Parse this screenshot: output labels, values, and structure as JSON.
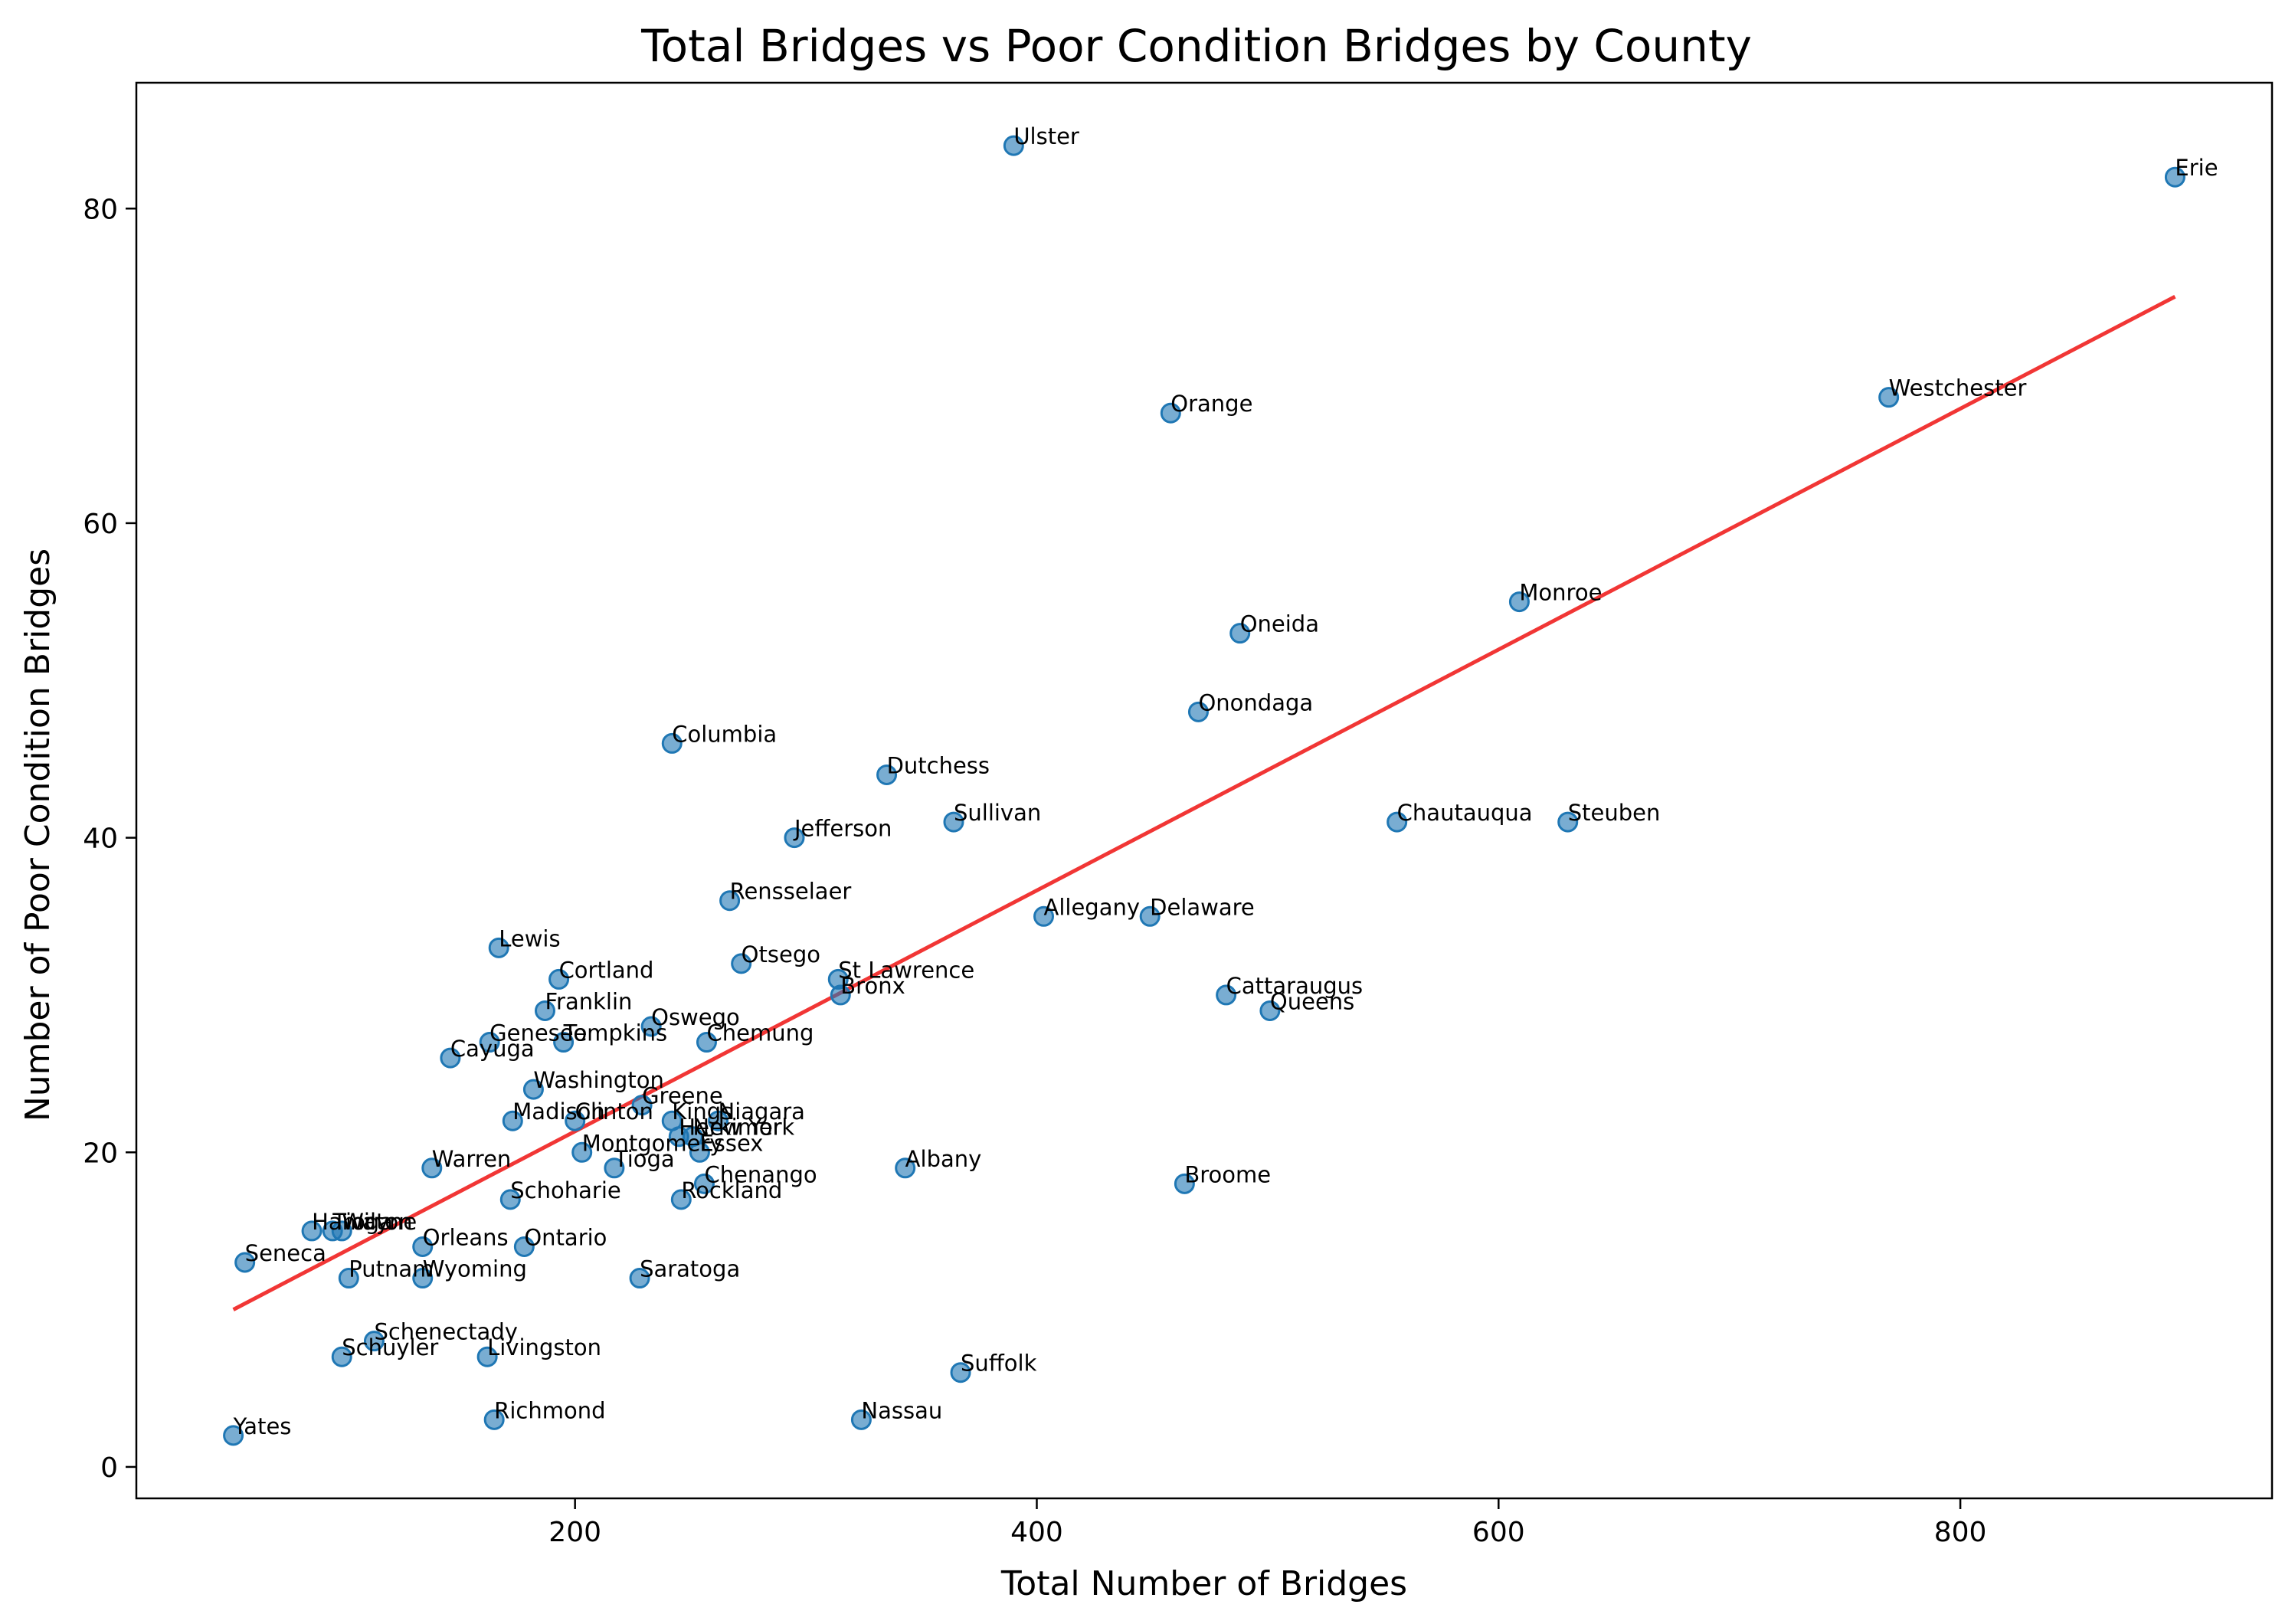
{
  "chart_data": {
    "type": "scatter",
    "title": "Total Bridges vs Poor Condition Bridges by County",
    "xlabel": "Total Number of Bridges",
    "ylabel": "Number of Poor Condition Bridges",
    "xlim": [
      10,
      935
    ],
    "ylim": [
      -2,
      88
    ],
    "xticks": [
      200,
      400,
      600,
      800
    ],
    "yticks": [
      0,
      20,
      40,
      60,
      80
    ],
    "grid": false,
    "legend": "none",
    "colors": {
      "points": "#1f77b4",
      "trend": "#f0201f"
    },
    "trendline": {
      "x": [
        52,
        893
      ],
      "y": [
        10,
        74.4
      ]
    },
    "points": [
      {
        "label": "Yates",
        "x": 52,
        "y": 2
      },
      {
        "label": "Seneca",
        "x": 57,
        "y": 13
      },
      {
        "label": "Hamilton",
        "x": 86,
        "y": 15
      },
      {
        "label": "Tioga",
        "x": 95,
        "y": 15
      },
      {
        "label": "Wayne",
        "x": 99,
        "y": 15
      },
      {
        "label": "Schuyler",
        "x": 99,
        "y": 7
      },
      {
        "label": "Putnam",
        "x": 102,
        "y": 12
      },
      {
        "label": "Schenectady",
        "x": 113,
        "y": 8
      },
      {
        "label": "Orleans",
        "x": 134,
        "y": 14
      },
      {
        "label": "Wyoming",
        "x": 134,
        "y": 12
      },
      {
        "label": "Warren",
        "x": 138,
        "y": 19
      },
      {
        "label": "Cayuga",
        "x": 146,
        "y": 26
      },
      {
        "label": "Livingston",
        "x": 162,
        "y": 7
      },
      {
        "label": "Genesee",
        "x": 163,
        "y": 27
      },
      {
        "label": "Richmond",
        "x": 165,
        "y": 3
      },
      {
        "label": "Lewis",
        "x": 167,
        "y": 33
      },
      {
        "label": "Schoharie",
        "x": 172,
        "y": 17
      },
      {
        "label": "Madison",
        "x": 173,
        "y": 22
      },
      {
        "label": "Ontario",
        "x": 178,
        "y": 14
      },
      {
        "label": "Washington",
        "x": 182,
        "y": 24
      },
      {
        "label": "Franklin",
        "x": 187,
        "y": 29
      },
      {
        "label": "Cortland",
        "x": 193,
        "y": 31
      },
      {
        "label": "Tompkins",
        "x": 195,
        "y": 27
      },
      {
        "label": "Clinton",
        "x": 200,
        "y": 22
      },
      {
        "label": "Montgomery",
        "x": 203,
        "y": 20
      },
      {
        "label": "Tioga",
        "x": 217,
        "y": 19
      },
      {
        "label": "Saratoga",
        "x": 228,
        "y": 12
      },
      {
        "label": "Greene",
        "x": 229,
        "y": 23
      },
      {
        "label": "Oswego",
        "x": 233,
        "y": 28
      },
      {
        "label": "Kings",
        "x": 242,
        "y": 22
      },
      {
        "label": "Columbia",
        "x": 242,
        "y": 46
      },
      {
        "label": "Herkimer",
        "x": 245,
        "y": 21
      },
      {
        "label": "Rockland",
        "x": 246,
        "y": 17
      },
      {
        "label": "New York",
        "x": 251,
        "y": 21
      },
      {
        "label": "Essex",
        "x": 254,
        "y": 20
      },
      {
        "label": "Chenango",
        "x": 256,
        "y": 18
      },
      {
        "label": "Chemung",
        "x": 257,
        "y": 27
      },
      {
        "label": "Niagara",
        "x": 262,
        "y": 22
      },
      {
        "label": "Rensselaer",
        "x": 267,
        "y": 36
      },
      {
        "label": "Otsego",
        "x": 272,
        "y": 32
      },
      {
        "label": "Jefferson",
        "x": 295,
        "y": 40
      },
      {
        "label": "St Lawrence",
        "x": 314,
        "y": 31
      },
      {
        "label": "Bronx",
        "x": 315,
        "y": 30
      },
      {
        "label": "Nassau",
        "x": 324,
        "y": 3
      },
      {
        "label": "Dutchess",
        "x": 335,
        "y": 44
      },
      {
        "label": "Albany",
        "x": 343,
        "y": 19
      },
      {
        "label": "Sullivan",
        "x": 364,
        "y": 41
      },
      {
        "label": "Suffolk",
        "x": 367,
        "y": 6
      },
      {
        "label": "Ulster",
        "x": 390,
        "y": 84
      },
      {
        "label": "Allegany",
        "x": 403,
        "y": 35
      },
      {
        "label": "Delaware",
        "x": 449,
        "y": 35
      },
      {
        "label": "Orange",
        "x": 458,
        "y": 67
      },
      {
        "label": "Broome",
        "x": 464,
        "y": 18
      },
      {
        "label": "Onondaga",
        "x": 470,
        "y": 48
      },
      {
        "label": "Cattaraugus",
        "x": 482,
        "y": 30
      },
      {
        "label": "Oneida",
        "x": 488,
        "y": 53
      },
      {
        "label": "Queens",
        "x": 501,
        "y": 29
      },
      {
        "label": "Chautauqua",
        "x": 556,
        "y": 41
      },
      {
        "label": "Monroe",
        "x": 609,
        "y": 55
      },
      {
        "label": "Steuben",
        "x": 630,
        "y": 41
      },
      {
        "label": "Westchester",
        "x": 769,
        "y": 68
      },
      {
        "label": "Erie",
        "x": 893,
        "y": 82
      }
    ]
  }
}
